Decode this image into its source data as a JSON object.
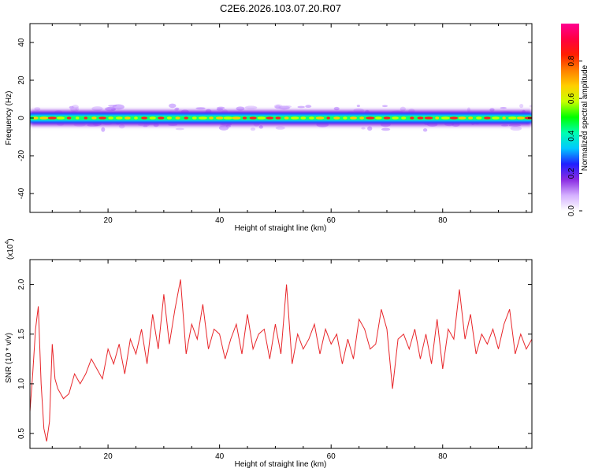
{
  "title": "C2E6.2026.103.07.20.R07",
  "colors": {
    "axis": "#000000",
    "snr_line": "#e8262a",
    "background": "#ffffff"
  },
  "chart_data": [
    {
      "type": "heatmap",
      "title": "C2E6.2026.103.07.20.R07",
      "xlabel": "Height of straight line (km)",
      "ylabel": "Frequency (Hz)",
      "xlim": [
        6,
        96
      ],
      "ylim": [
        -50,
        50
      ],
      "x_ticks": [
        20,
        40,
        60,
        80
      ],
      "y_ticks": [
        -40,
        -20,
        0,
        20,
        40
      ],
      "x_tick_labels": [
        "20",
        "40",
        "60",
        "80"
      ],
      "y_tick_labels": [
        "-40",
        "-20",
        "0",
        "20",
        "40"
      ],
      "band_center_hz": 0,
      "band_halfwidth_hz": 2.5,
      "colorbar": {
        "label": "Normalized spectral amplitude",
        "range": [
          0,
          1
        ],
        "ticks": [
          0,
          0.2,
          0.4,
          0.6,
          0.8
        ],
        "tick_labels": [
          "0.0",
          "0.2",
          "0.4",
          "0.6",
          "0.8"
        ],
        "colormap": [
          "#ffffff",
          "#d4b0ff",
          "#8a2be2",
          "#2020ff",
          "#00c8ff",
          "#00ffb0",
          "#00ff00",
          "#c8ff00",
          "#ffd000",
          "#ff8000",
          "#ff2000",
          "#ff0040",
          "#ff0090"
        ]
      }
    },
    {
      "type": "line",
      "xlabel": "Height of straight line (km)",
      "ylabel": "SNR (10 * v/v)",
      "y_scale_label": "(x10",
      "y_scale_exponent": "4",
      "xlim": [
        6,
        96
      ],
      "ylim": [
        0.35,
        2.25
      ],
      "x_ticks": [
        20,
        40,
        60,
        80
      ],
      "y_ticks": [
        0.5,
        1.0,
        1.5,
        2.0
      ],
      "x_tick_labels": [
        "20",
        "40",
        "60",
        "80"
      ],
      "y_tick_labels": [
        "0.5",
        "1.0",
        "1.5",
        "2.0"
      ],
      "series": [
        {
          "name": "SNR",
          "x": [
            6,
            6.5,
            7,
            7.5,
            8,
            8.5,
            9,
            9.5,
            10,
            10.5,
            11,
            12,
            13,
            14,
            15,
            16,
            17,
            18,
            19,
            20,
            21,
            22,
            23,
            24,
            25,
            26,
            27,
            28,
            29,
            30,
            31,
            32,
            33,
            34,
            35,
            36,
            37,
            38,
            39,
            40,
            41,
            42,
            43,
            44,
            45,
            46,
            47,
            48,
            49,
            50,
            51,
            52,
            53,
            54,
            55,
            56,
            57,
            58,
            59,
            60,
            61,
            62,
            63,
            64,
            65,
            66,
            67,
            68,
            69,
            70,
            71,
            72,
            73,
            74,
            75,
            76,
            77,
            78,
            79,
            80,
            81,
            82,
            83,
            84,
            85,
            86,
            87,
            88,
            89,
            90,
            91,
            92,
            93,
            94,
            95,
            96
          ],
          "y": [
            0.72,
            1.1,
            1.55,
            1.78,
            1.0,
            0.55,
            0.42,
            0.62,
            1.4,
            1.05,
            0.95,
            0.85,
            0.9,
            1.1,
            1.0,
            1.1,
            1.25,
            1.15,
            1.05,
            1.35,
            1.2,
            1.4,
            1.1,
            1.45,
            1.3,
            1.55,
            1.2,
            1.7,
            1.35,
            1.9,
            1.4,
            1.75,
            2.05,
            1.3,
            1.6,
            1.45,
            1.8,
            1.35,
            1.55,
            1.5,
            1.25,
            1.45,
            1.6,
            1.3,
            1.7,
            1.35,
            1.5,
            1.55,
            1.25,
            1.6,
            1.3,
            2.0,
            1.2,
            1.5,
            1.35,
            1.45,
            1.6,
            1.3,
            1.55,
            1.4,
            1.5,
            1.2,
            1.45,
            1.25,
            1.65,
            1.55,
            1.35,
            1.4,
            1.75,
            1.55,
            0.95,
            1.45,
            1.5,
            1.35,
            1.55,
            1.25,
            1.5,
            1.2,
            1.65,
            1.15,
            1.55,
            1.45,
            1.95,
            1.45,
            1.7,
            1.3,
            1.5,
            1.4,
            1.55,
            1.35,
            1.6,
            1.75,
            1.3,
            1.5,
            1.35,
            1.45
          ]
        }
      ]
    }
  ]
}
